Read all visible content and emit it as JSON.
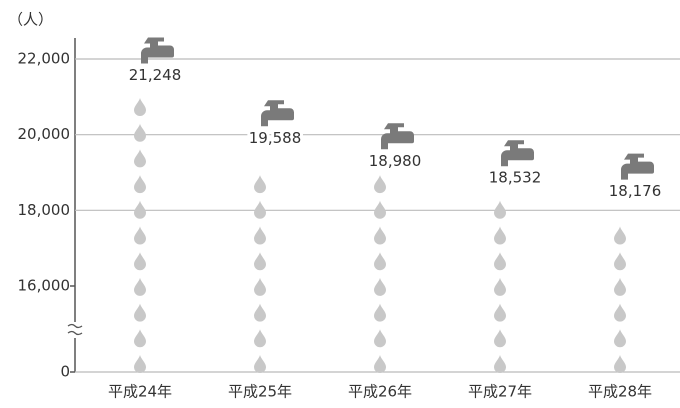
{
  "chart_data": {
    "type": "pictogram",
    "y_unit": "（人）",
    "categories": [
      "平成24年",
      "平成25年",
      "平成26年",
      "平成27年",
      "平成28年"
    ],
    "values": [
      21248,
      19588,
      18980,
      18532,
      18176
    ],
    "value_labels": [
      "21,248",
      "19,588",
      "18,980",
      "18,532",
      "18,176"
    ],
    "color": "#c8c8c8",
    "faucet_color": "#7a7a7a",
    "ylim": [
      0,
      22000
    ],
    "axis_break": [
      0,
      16000
    ],
    "yticks": [
      0,
      {
        "value": 16000,
        "label": "16,000"
      },
      {
        "value": 18000,
        "label": "18,000"
      },
      {
        "value": 20000,
        "label": "20,000"
      },
      {
        "value": 22000,
        "label": "22,000"
      }
    ],
    "grid": true
  }
}
